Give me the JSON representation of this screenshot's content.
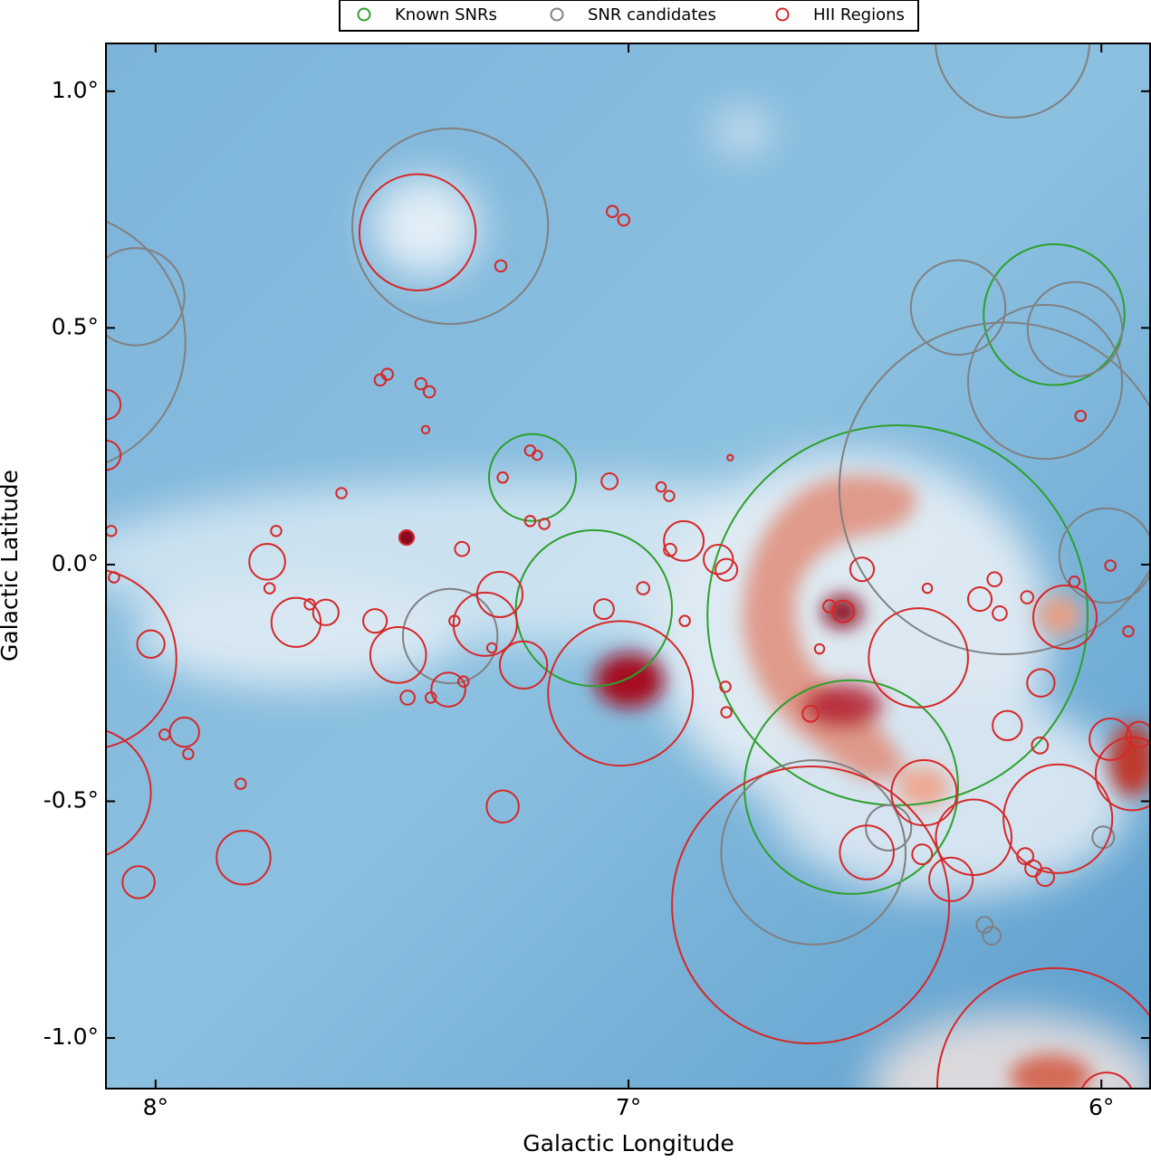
{
  "chart_data": {
    "type": "scatter",
    "xlabel": "Galactic Longitude",
    "ylabel": "Galactic Latitude",
    "xlim": [
      8.105,
      5.897
    ],
    "ylim": [
      -1.107,
      1.101
    ],
    "xticks": [
      {
        "value": 8,
        "label": "8°"
      },
      {
        "value": 7,
        "label": "7°"
      },
      {
        "value": 6,
        "label": "6°"
      }
    ],
    "yticks": [
      {
        "value": -1.0,
        "label": "-1.0°"
      },
      {
        "value": -0.5,
        "label": "-0.5°"
      },
      {
        "value": 0.0,
        "label": "0.0°"
      },
      {
        "value": 0.5,
        "label": "0.5°"
      },
      {
        "value": 1.0,
        "label": "1.0°"
      }
    ],
    "legend": "top",
    "series": [
      {
        "name": "Known SNRs",
        "color": "#2ca02c",
        "x": [
          6.1,
          7.203,
          7.073,
          6.431,
          6.529
        ],
        "values": [
          0.528,
          0.184,
          -0.092,
          -0.107,
          -0.47
        ],
        "sizes": [
          0.149,
          0.092,
          0.165,
          0.402,
          0.226
        ]
      },
      {
        "name": "SNR candidates",
        "color": "#808080",
        "x": [
          6.188,
          7.377,
          8.042,
          8.215,
          6.303,
          6.119,
          6.056,
          6.203,
          5.989,
          7.377,
          6.609,
          6.45,
          5.996,
          6.247,
          6.232
        ],
        "values": [
          1.107,
          0.715,
          0.566,
          0.47,
          0.543,
          0.386,
          0.497,
          0.161,
          0.019,
          -0.151,
          -0.608,
          -0.556,
          -0.576,
          -0.761,
          -0.784
        ],
        "sizes": [
          0.163,
          0.207,
          0.103,
          0.278,
          0.1,
          0.163,
          0.1,
          0.351,
          0.1,
          0.1,
          0.195,
          0.048,
          0.023,
          0.017,
          0.019
        ]
      },
      {
        "name": "HII Regions",
        "color": "#d62728",
        "x": [
          7.446,
          7.27,
          7.034,
          7.01,
          7.525,
          7.51,
          7.439,
          7.421,
          7.429,
          8.105,
          8.105,
          8.094,
          8.088,
          7.607,
          7.745,
          7.764,
          7.759,
          7.703,
          7.64,
          7.674,
          7.536,
          7.487,
          7.469,
          7.352,
          7.266,
          7.208,
          7.193,
          7.208,
          7.178,
          7.04,
          6.931,
          6.914,
          6.785,
          6.883,
          6.912,
          6.81,
          6.793,
          6.969,
          7.052,
          7.272,
          7.303,
          7.222,
          7.368,
          7.289,
          7.349,
          7.381,
          7.418,
          7.467,
          7.017,
          6.881,
          8.01,
          8.148,
          8.148,
          7.939,
          7.981,
          7.931,
          7.82,
          7.814,
          8.036,
          7.266,
          6.615,
          6.615,
          6.506,
          6.387,
          6.375,
          6.27,
          6.496,
          6.379,
          6.318,
          6.092,
          6.098,
          5.989,
          6.077,
          6.128,
          6.199,
          6.13,
          6.257,
          6.215,
          6.226,
          6.157,
          6.057,
          5.981,
          6.044,
          5.943,
          5.981,
          5.935,
          5.92,
          6.546,
          6.575,
          6.596,
          6.368,
          6.161,
          6.119,
          6.144,
          6.793,
          6.795
        ],
        "values": [
          0.702,
          0.631,
          0.746,
          0.728,
          0.39,
          0.402,
          0.382,
          0.365,
          0.285,
          0.338,
          0.231,
          0.071,
          -0.027,
          0.151,
          0.071,
          0.006,
          -0.05,
          -0.122,
          -0.101,
          -0.084,
          -0.119,
          -0.191,
          0.057,
          0.033,
          0.184,
          0.241,
          0.231,
          0.092,
          0.086,
          0.176,
          0.164,
          0.145,
          0.226,
          0.05,
          0.031,
          0.011,
          -0.011,
          -0.05,
          -0.094,
          -0.063,
          -0.126,
          -0.212,
          -0.119,
          -0.176,
          -0.247,
          -0.264,
          -0.281,
          -0.281,
          -0.272,
          -0.119,
          -0.168,
          -0.199,
          -0.482,
          -0.354,
          -0.359,
          -0.4,
          -0.463,
          -0.619,
          -0.671,
          -0.511,
          -0.719,
          -0.315,
          -0.01,
          -0.197,
          -0.482,
          -0.576,
          -0.608,
          -0.612,
          -0.665,
          -0.537,
          -1.101,
          -1.13,
          -0.111,
          -0.25,
          -0.34,
          -0.382,
          -0.073,
          -0.103,
          -0.031,
          -0.069,
          -0.036,
          -0.002,
          0.314,
          -0.141,
          -0.369,
          -0.442,
          -0.359,
          -0.099,
          -0.088,
          -0.178,
          -0.05,
          -0.616,
          -0.66,
          -0.642,
          -0.312,
          -0.258
        ],
        "sizes": [
          0.123,
          0.012,
          0.012,
          0.012,
          0.012,
          0.012,
          0.012,
          0.012,
          0.008,
          0.031,
          0.031,
          0.011,
          0.011,
          0.011,
          0.011,
          0.038,
          0.011,
          0.052,
          0.027,
          0.011,
          0.025,
          0.059,
          0.015,
          0.015,
          0.011,
          0.011,
          0.01,
          0.011,
          0.011,
          0.017,
          0.01,
          0.011,
          0.006,
          0.042,
          0.013,
          0.031,
          0.023,
          0.013,
          0.021,
          0.048,
          0.067,
          0.05,
          0.011,
          0.01,
          0.011,
          0.036,
          0.011,
          0.015,
          0.153,
          0.011,
          0.029,
          0.192,
          0.138,
          0.031,
          0.011,
          0.011,
          0.011,
          0.057,
          0.034,
          0.034,
          0.293,
          0.017,
          0.025,
          0.105,
          0.069,
          0.08,
          0.057,
          0.021,
          0.046,
          0.115,
          0.249,
          0.057,
          0.067,
          0.029,
          0.031,
          0.017,
          0.025,
          0.015,
          0.015,
          0.013,
          0.011,
          0.011,
          0.011,
          0.011,
          0.044,
          0.077,
          0.027,
          0.023,
          0.013,
          0.01,
          0.01,
          0.017,
          0.019,
          0.017,
          0.011,
          0.011
        ]
      }
    ]
  }
}
